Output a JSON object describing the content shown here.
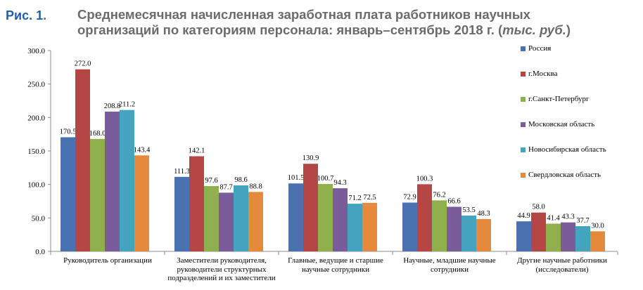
{
  "figure": {
    "label": "Рис. 1",
    "label_dot": ".",
    "title_line1": "Среднемесячная начисленная заработная плата работников научных",
    "title_line2": "организаций по категориям персонала: январь–сентябрь 2018 г. (",
    "title_unit": "тыс. руб.",
    "title_close": ")"
  },
  "colors": {
    "series": [
      "#4a72b0",
      "#b44645",
      "#8fb04d",
      "#7a5c9a",
      "#44a3be",
      "#e58a3d"
    ],
    "label_blue": "#1f5fa8",
    "title_gray": "#6b6b6b"
  },
  "chart_data": {
    "type": "bar",
    "title": "Среднемесячная начисленная заработная плата работников научных организаций по категориям персонала: январь–сентябрь 2018 г. (тыс. руб.)",
    "xlabel": "",
    "ylabel": "",
    "ylim": [
      0,
      300
    ],
    "yticks": [
      "0.0",
      "50.0",
      "100.0",
      "150.0",
      "200.0",
      "250.0",
      "300.0"
    ],
    "grid": false,
    "legend_position": "right",
    "categories": [
      [
        "Руководитель организации"
      ],
      [
        "Заместители руководителя,",
        "руководители структурных",
        "подразделений и их заместители"
      ],
      [
        "Главные, ведущие и старшие",
        "научные сотрудники"
      ],
      [
        "Научные, младшие научные",
        "сотрудники"
      ],
      [
        "Другие научные работники",
        "(исследователи)"
      ]
    ],
    "series": [
      {
        "name": "Россия",
        "values": [
          170.5,
          111.3,
          101.5,
          72.9,
          44.9
        ],
        "labels": [
          "170.5",
          "111.3",
          "101.5",
          "72.9",
          "44.9"
        ]
      },
      {
        "name": "г.Москва",
        "values": [
          272.0,
          142.1,
          130.9,
          100.3,
          58.0
        ],
        "labels": [
          "272.0",
          "142.1",
          "130.9",
          "100.3",
          "58.0"
        ]
      },
      {
        "name": "г.Санкт-Петербург",
        "values": [
          168.0,
          97.6,
          100.7,
          76.2,
          41.4
        ],
        "labels": [
          "168.0",
          "97.6",
          "100.7",
          "76.2",
          "41.4"
        ]
      },
      {
        "name": "Московская область",
        "values": [
          208.8,
          87.7,
          94.3,
          66.6,
          43.3
        ],
        "labels": [
          "208.8",
          "87.7",
          "94.3",
          "66.6",
          "43.3"
        ]
      },
      {
        "name": "Новосибирская область",
        "values": [
          211.2,
          98.6,
          71.2,
          53.5,
          37.7
        ],
        "labels": [
          "211.2",
          "98.6",
          "71.2",
          "53.5",
          "37.7"
        ]
      },
      {
        "name": "Свердловская область",
        "values": [
          143.4,
          88.8,
          72.5,
          48.3,
          30.0
        ],
        "labels": [
          "143.4",
          "88.8",
          "72.5",
          "48.3",
          "30.0"
        ]
      }
    ]
  }
}
